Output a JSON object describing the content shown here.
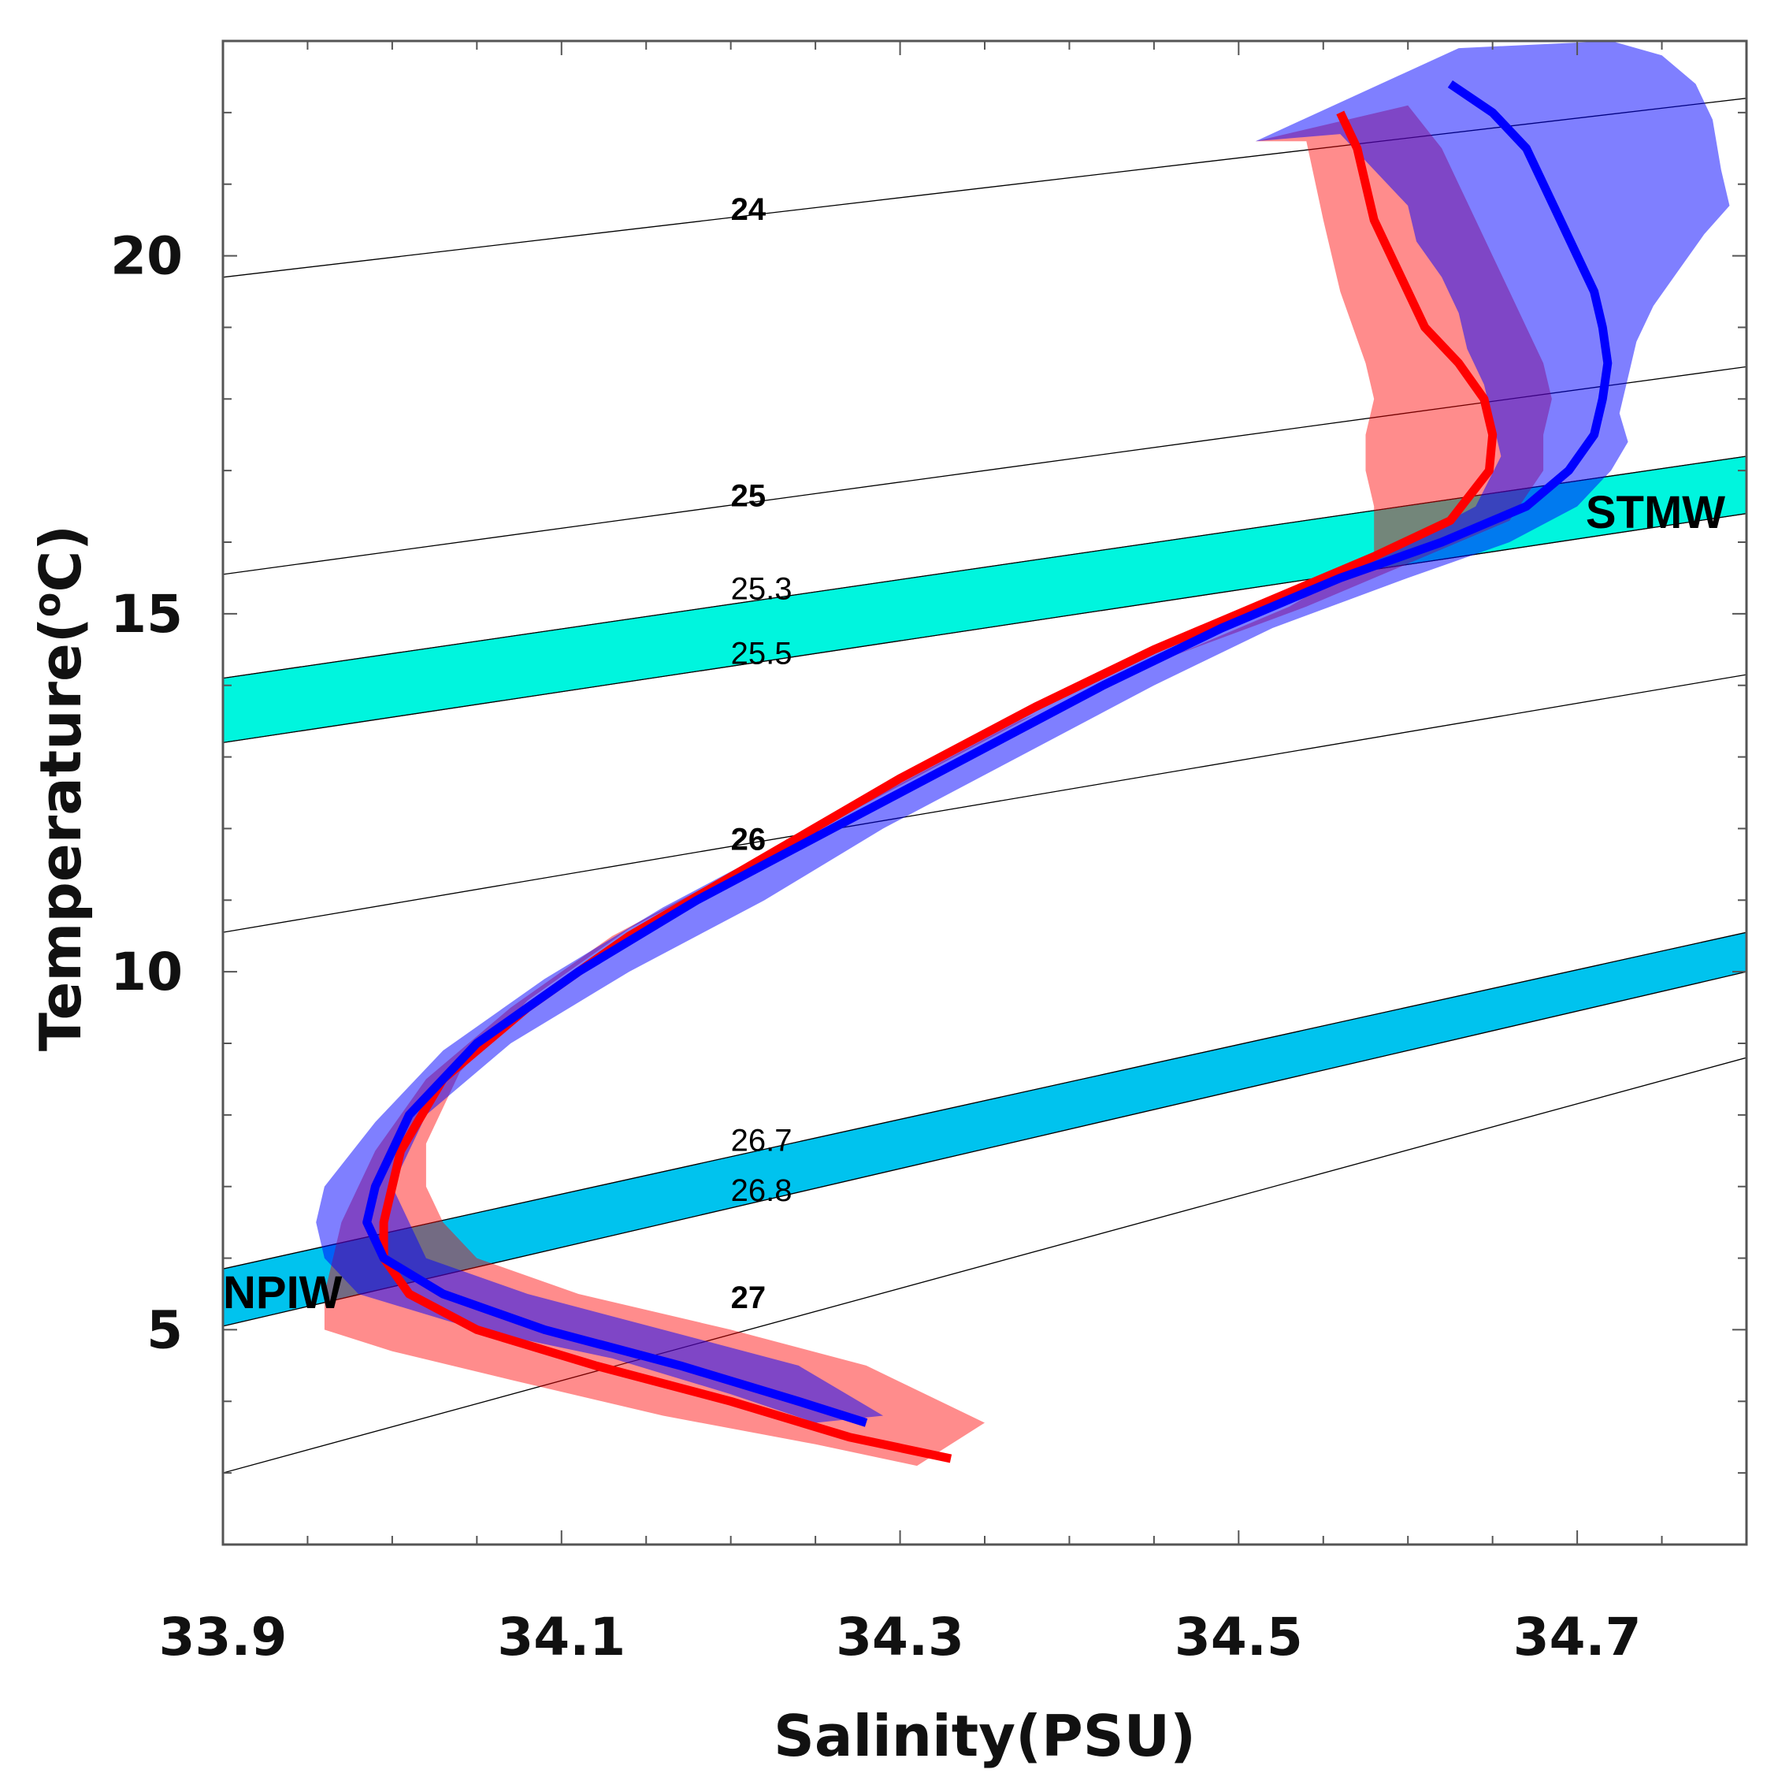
{
  "chart_data": {
    "type": "line",
    "title": "",
    "xlabel": "Salinity(PSU)",
    "ylabel_main": "Temperature(",
    "ylabel_sup": "o",
    "ylabel_end": "C)",
    "xlim": [
      33.9,
      34.8
    ],
    "ylim": [
      2,
      23
    ],
    "xticks": [
      33.9,
      34.1,
      34.3,
      34.5,
      34.7
    ],
    "xtick_labels": [
      "33.9",
      "34.1",
      "34.3",
      "34.5",
      "34.7"
    ],
    "yticks": [
      5,
      10,
      15,
      20
    ],
    "ytick_labels": [
      "5",
      "10",
      "15",
      "20"
    ],
    "grid": false,
    "isopycnals": [
      {
        "label": "24",
        "bold": true,
        "label_at": [
          34.2,
          20.5
        ],
        "line": [
          [
            33.9,
            19.7
          ],
          [
            34.8,
            22.2
          ]
        ]
      },
      {
        "label": "25",
        "bold": true,
        "label_at": [
          34.2,
          16.5
        ],
        "line": [
          [
            33.9,
            15.55
          ],
          [
            34.8,
            18.45
          ]
        ]
      },
      {
        "label": "25.3",
        "bold": false,
        "label_at": [
          34.2,
          15.2
        ],
        "line": [
          [
            33.9,
            14.1
          ],
          [
            34.8,
            17.2
          ]
        ]
      },
      {
        "label": "25.5",
        "bold": false,
        "label_at": [
          34.2,
          14.3
        ],
        "line": [
          [
            33.9,
            13.2
          ],
          [
            34.8,
            16.4
          ]
        ]
      },
      {
        "label": "26",
        "bold": true,
        "label_at": [
          34.2,
          11.7
        ],
        "line": [
          [
            33.9,
            10.55
          ],
          [
            34.8,
            14.15
          ]
        ]
      },
      {
        "label": "26.7",
        "bold": false,
        "label_at": [
          34.2,
          7.5
        ],
        "line": [
          [
            33.9,
            5.85
          ],
          [
            34.8,
            10.55
          ]
        ]
      },
      {
        "label": "26.8",
        "bold": false,
        "label_at": [
          34.2,
          6.8
        ],
        "line": [
          [
            33.9,
            5.05
          ],
          [
            34.8,
            10.0
          ]
        ]
      },
      {
        "label": "27",
        "bold": true,
        "label_at": [
          34.2,
          5.3
        ],
        "line": [
          [
            33.9,
            3.0
          ],
          [
            34.8,
            8.8
          ]
        ]
      }
    ],
    "water_masses": [
      {
        "name": "STMW",
        "label": "STMW",
        "color": "#00f5de",
        "sigma_range": [
          "25.3",
          "25.5"
        ],
        "label_at": [
          34.705,
          16.2
        ]
      },
      {
        "name": "NPIW",
        "label": "NPIW",
        "color": "#00c3ee",
        "sigma_range": [
          "26.7",
          "26.8"
        ],
        "label_at": [
          33.9,
          5.3
        ]
      }
    ],
    "series": [
      {
        "name": "red-mean",
        "color": "#ff0000",
        "x": [
          34.56,
          34.57,
          34.575,
          34.58,
          34.59,
          34.6,
          34.61,
          34.63,
          34.645,
          34.65,
          34.648,
          34.625,
          34.58,
          34.52,
          34.45,
          34.38,
          34.3,
          34.22,
          34.14,
          34.08,
          34.03,
          34.005,
          33.995,
          33.995,
          34.01,
          34.05,
          34.12,
          34.2,
          34.27,
          34.33
        ],
        "y": [
          22.0,
          21.5,
          21.0,
          20.5,
          20.0,
          19.5,
          19.0,
          18.5,
          18.0,
          17.5,
          17.0,
          16.3,
          15.8,
          15.2,
          14.5,
          13.7,
          12.7,
          11.6,
          10.5,
          9.5,
          8.5,
          7.5,
          6.5,
          6.0,
          5.5,
          5.0,
          4.5,
          4.0,
          3.5,
          3.2
        ]
      },
      {
        "name": "blue-mean",
        "color": "#0000ff",
        "x": [
          34.625,
          34.65,
          34.67,
          34.68,
          34.69,
          34.7,
          34.71,
          34.715,
          34.718,
          34.715,
          34.71,
          34.695,
          34.67,
          34.62,
          34.56,
          34.49,
          34.42,
          34.34,
          34.26,
          34.18,
          34.11,
          34.05,
          34.01,
          33.99,
          33.985,
          33.995,
          34.03,
          34.09,
          34.17,
          34.24,
          34.28
        ],
        "y": [
          22.4,
          22.0,
          21.5,
          21.0,
          20.5,
          20.0,
          19.5,
          19.0,
          18.5,
          18.0,
          17.5,
          17.0,
          16.5,
          16.0,
          15.5,
          14.8,
          14.0,
          13.0,
          12.0,
          11.0,
          10.0,
          9.0,
          8.0,
          7.0,
          6.5,
          6.0,
          5.5,
          5.0,
          4.5,
          4.0,
          3.7
        ]
      }
    ],
    "envelopes": [
      {
        "name": "red-range",
        "color": "#ff0000",
        "opacity": 0.45,
        "upper": [
          [
            34.51,
            21.6
          ],
          [
            34.6,
            22.1
          ],
          [
            34.62,
            21.5
          ],
          [
            34.63,
            21.0
          ],
          [
            34.64,
            20.5
          ],
          [
            34.65,
            20.0
          ],
          [
            34.66,
            19.5
          ],
          [
            34.67,
            19.0
          ],
          [
            34.68,
            18.5
          ],
          [
            34.685,
            18.0
          ],
          [
            34.68,
            17.5
          ],
          [
            34.68,
            17.0
          ],
          [
            34.66,
            16.3
          ],
          [
            34.6,
            15.7
          ],
          [
            34.54,
            15.1
          ],
          [
            34.46,
            14.4
          ],
          [
            34.38,
            13.6
          ],
          [
            34.3,
            12.6
          ],
          [
            34.22,
            11.6
          ],
          [
            34.14,
            10.6
          ],
          [
            34.08,
            9.6
          ],
          [
            34.04,
            8.6
          ],
          [
            34.02,
            7.6
          ],
          [
            34.02,
            7.0
          ],
          [
            34.03,
            6.5
          ],
          [
            34.05,
            6.0
          ],
          [
            34.11,
            5.5
          ],
          [
            34.2,
            5.0
          ],
          [
            34.28,
            4.5
          ],
          [
            34.35,
            3.7
          ]
        ],
        "lower": [
          [
            34.54,
            21.6
          ],
          [
            34.55,
            20.5
          ],
          [
            34.56,
            19.5
          ],
          [
            34.575,
            18.5
          ],
          [
            34.58,
            18.0
          ],
          [
            34.575,
            17.5
          ],
          [
            34.575,
            17.0
          ],
          [
            34.58,
            16.5
          ],
          [
            34.58,
            15.8
          ],
          [
            34.53,
            15.1
          ],
          [
            34.45,
            14.3
          ],
          [
            34.37,
            13.5
          ],
          [
            34.29,
            12.5
          ],
          [
            34.21,
            11.5
          ],
          [
            34.13,
            10.5
          ],
          [
            34.07,
            9.5
          ],
          [
            34.02,
            8.5
          ],
          [
            33.99,
            7.5
          ],
          [
            33.97,
            6.5
          ],
          [
            33.965,
            6.0
          ],
          [
            33.96,
            5.5
          ],
          [
            33.96,
            5.0
          ],
          [
            34.0,
            4.7
          ],
          [
            34.07,
            4.3
          ],
          [
            34.16,
            3.8
          ],
          [
            34.25,
            3.4
          ],
          [
            34.31,
            3.1
          ]
        ]
      },
      {
        "name": "blue-range",
        "color": "#0000ff",
        "opacity": 0.5,
        "upper": [
          [
            34.63,
            22.9
          ],
          [
            34.72,
            23.0
          ],
          [
            34.75,
            22.8
          ],
          [
            34.77,
            22.4
          ],
          [
            34.78,
            21.9
          ],
          [
            34.785,
            21.2
          ],
          [
            34.79,
            20.7
          ],
          [
            34.775,
            20.3
          ],
          [
            34.76,
            19.8
          ],
          [
            34.745,
            19.3
          ],
          [
            34.735,
            18.8
          ],
          [
            34.73,
            18.3
          ],
          [
            34.725,
            17.8
          ],
          [
            34.73,
            17.4
          ],
          [
            34.72,
            17.0
          ],
          [
            34.7,
            16.5
          ],
          [
            34.66,
            16.0
          ],
          [
            34.6,
            15.5
          ],
          [
            34.52,
            14.8
          ],
          [
            34.45,
            14.0
          ],
          [
            34.37,
            13.0
          ],
          [
            34.29,
            12.0
          ],
          [
            34.22,
            11.0
          ],
          [
            34.14,
            10.0
          ],
          [
            34.07,
            9.0
          ],
          [
            34.02,
            8.0
          ],
          [
            34.0,
            7.0
          ],
          [
            34.02,
            6.0
          ],
          [
            34.08,
            5.5
          ],
          [
            34.16,
            5.0
          ],
          [
            34.24,
            4.5
          ],
          [
            34.29,
            3.8
          ]
        ],
        "lower": [
          [
            34.51,
            21.6
          ],
          [
            34.56,
            21.7
          ],
          [
            34.58,
            21.2
          ],
          [
            34.6,
            20.7
          ],
          [
            34.605,
            20.2
          ],
          [
            34.62,
            19.7
          ],
          [
            34.63,
            19.2
          ],
          [
            34.635,
            18.7
          ],
          [
            34.645,
            18.2
          ],
          [
            34.65,
            17.7
          ],
          [
            34.655,
            17.2
          ],
          [
            34.64,
            16.5
          ],
          [
            34.6,
            16.0
          ],
          [
            34.54,
            15.4
          ],
          [
            34.47,
            14.7
          ],
          [
            34.4,
            13.9
          ],
          [
            34.32,
            12.9
          ],
          [
            34.24,
            11.9
          ],
          [
            34.16,
            10.9
          ],
          [
            34.09,
            9.9
          ],
          [
            34.03,
            8.9
          ],
          [
            33.99,
            7.9
          ],
          [
            33.96,
            7.0
          ],
          [
            33.955,
            6.5
          ],
          [
            33.96,
            6.0
          ],
          [
            33.98,
            5.5
          ],
          [
            34.05,
            5.0
          ],
          [
            34.13,
            4.6
          ],
          [
            34.2,
            4.1
          ],
          [
            34.25,
            3.7
          ]
        ]
      }
    ]
  }
}
